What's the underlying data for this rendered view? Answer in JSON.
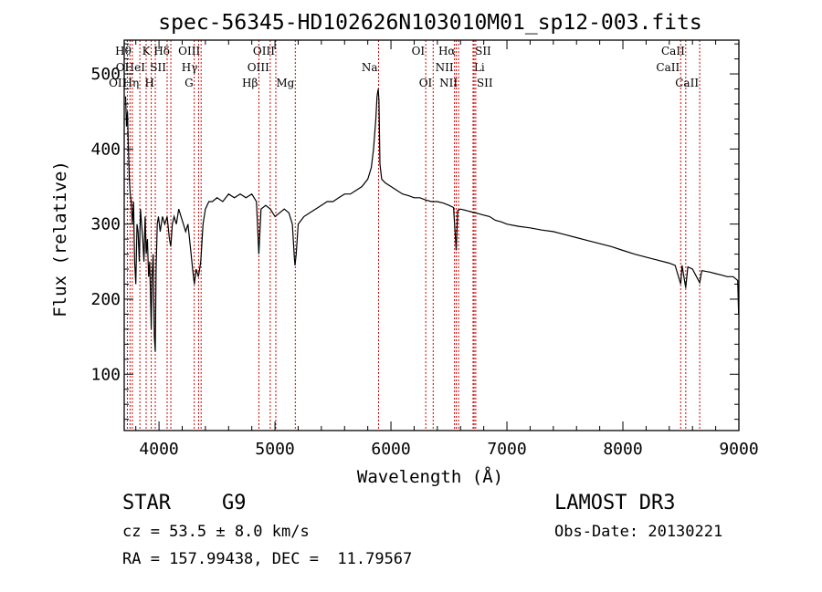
{
  "chart_data": {
    "type": "line",
    "title": "spec-56345-HD102626N103010M01_sp12-003.fits",
    "xlabel": "Wavelength (Å)",
    "ylabel": "Flux (relative)",
    "xlim": [
      3700,
      9000
    ],
    "ylim": [
      25,
      545
    ],
    "xticks": [
      4000,
      5000,
      6000,
      7000,
      8000,
      9000
    ],
    "yticks": [
      100,
      200,
      300,
      400,
      500
    ],
    "grid": false,
    "line_color": "#000000",
    "marker_color": "#cc0000",
    "spectrum": [
      [
        3712,
        470
      ],
      [
        3720,
        430
      ],
      [
        3728,
        450
      ],
      [
        3736,
        400
      ],
      [
        3744,
        360
      ],
      [
        3752,
        340
      ],
      [
        3760,
        330
      ],
      [
        3770,
        300
      ],
      [
        3780,
        330
      ],
      [
        3790,
        250
      ],
      [
        3800,
        220
      ],
      [
        3810,
        300
      ],
      [
        3820,
        290
      ],
      [
        3830,
        250
      ],
      [
        3840,
        320
      ],
      [
        3850,
        300
      ],
      [
        3860,
        280
      ],
      [
        3870,
        250
      ],
      [
        3880,
        310
      ],
      [
        3890,
        260
      ],
      [
        3900,
        280
      ],
      [
        3910,
        230
      ],
      [
        3920,
        250
      ],
      [
        3933,
        160
      ],
      [
        3940,
        230
      ],
      [
        3950,
        260
      ],
      [
        3960,
        150
      ],
      [
        3968,
        130
      ],
      [
        3975,
        240
      ],
      [
        3985,
        300
      ],
      [
        3995,
        310
      ],
      [
        4010,
        290
      ],
      [
        4030,
        310
      ],
      [
        4050,
        300
      ],
      [
        4070,
        310
      ],
      [
        4090,
        280
      ],
      [
        4102,
        270
      ],
      [
        4115,
        300
      ],
      [
        4130,
        310
      ],
      [
        4150,
        300
      ],
      [
        4170,
        320
      ],
      [
        4190,
        310
      ],
      [
        4210,
        300
      ],
      [
        4230,
        290
      ],
      [
        4250,
        300
      ],
      [
        4270,
        270
      ],
      [
        4290,
        240
      ],
      [
        4305,
        220
      ],
      [
        4320,
        240
      ],
      [
        4340,
        230
      ],
      [
        4360,
        250
      ],
      [
        4380,
        300
      ],
      [
        4400,
        320
      ],
      [
        4430,
        330
      ],
      [
        4460,
        330
      ],
      [
        4500,
        335
      ],
      [
        4550,
        330
      ],
      [
        4600,
        340
      ],
      [
        4650,
        335
      ],
      [
        4700,
        340
      ],
      [
        4750,
        335
      ],
      [
        4800,
        340
      ],
      [
        4840,
        330
      ],
      [
        4861,
        260
      ],
      [
        4880,
        320
      ],
      [
        4920,
        325
      ],
      [
        4960,
        320
      ],
      [
        5000,
        310
      ],
      [
        5040,
        315
      ],
      [
        5080,
        320
      ],
      [
        5120,
        315
      ],
      [
        5150,
        300
      ],
      [
        5167,
        255
      ],
      [
        5173,
        245
      ],
      [
        5183,
        260
      ],
      [
        5200,
        300
      ],
      [
        5250,
        310
      ],
      [
        5300,
        315
      ],
      [
        5350,
        320
      ],
      [
        5400,
        325
      ],
      [
        5450,
        330
      ],
      [
        5500,
        330
      ],
      [
        5550,
        335
      ],
      [
        5600,
        340
      ],
      [
        5650,
        340
      ],
      [
        5700,
        345
      ],
      [
        5750,
        350
      ],
      [
        5800,
        360
      ],
      [
        5830,
        375
      ],
      [
        5850,
        400
      ],
      [
        5870,
        440
      ],
      [
        5880,
        470
      ],
      [
        5890,
        480
      ],
      [
        5896,
        465
      ],
      [
        5905,
        380
      ],
      [
        5920,
        360
      ],
      [
        5950,
        355
      ],
      [
        6000,
        350
      ],
      [
        6050,
        345
      ],
      [
        6100,
        340
      ],
      [
        6150,
        338
      ],
      [
        6200,
        335
      ],
      [
        6250,
        335
      ],
      [
        6300,
        332
      ],
      [
        6350,
        330
      ],
      [
        6400,
        330
      ],
      [
        6450,
        328
      ],
      [
        6500,
        325
      ],
      [
        6540,
        322
      ],
      [
        6563,
        265
      ],
      [
        6575,
        318
      ],
      [
        6600,
        320
      ],
      [
        6650,
        318
      ],
      [
        6700,
        316
      ],
      [
        6750,
        314
      ],
      [
        6800,
        312
      ],
      [
        6850,
        310
      ],
      [
        6900,
        305
      ],
      [
        6950,
        303
      ],
      [
        7000,
        300
      ],
      [
        7100,
        297
      ],
      [
        7200,
        295
      ],
      [
        7300,
        292
      ],
      [
        7400,
        290
      ],
      [
        7500,
        286
      ],
      [
        7600,
        282
      ],
      [
        7700,
        278
      ],
      [
        7800,
        274
      ],
      [
        7900,
        270
      ],
      [
        8000,
        265
      ],
      [
        8100,
        260
      ],
      [
        8200,
        256
      ],
      [
        8300,
        252
      ],
      [
        8400,
        248
      ],
      [
        8450,
        245
      ],
      [
        8498,
        220
      ],
      [
        8510,
        245
      ],
      [
        8542,
        215
      ],
      [
        8560,
        243
      ],
      [
        8600,
        240
      ],
      [
        8662,
        222
      ],
      [
        8680,
        238
      ],
      [
        8750,
        236
      ],
      [
        8800,
        234
      ],
      [
        8850,
        232
      ],
      [
        8900,
        230
      ],
      [
        8950,
        230
      ],
      [
        8990,
        225
      ],
      [
        8998,
        180
      ]
    ],
    "line_markers": [
      {
        "wl": 3727,
        "label": "OII",
        "row": 2,
        "side": "left"
      },
      {
        "wl": 3750,
        "label": "OI",
        "row": 1,
        "side": "left"
      },
      {
        "wl": 3770,
        "label": "Hθ",
        "row": 0,
        "side": "left"
      },
      {
        "wl": 3835,
        "label": "Hη",
        "row": 2,
        "side": "left"
      },
      {
        "wl": 3889,
        "label": "HeI",
        "row": 1,
        "side": "left"
      },
      {
        "wl": 3933,
        "label": "K",
        "row": 0,
        "side": "left"
      },
      {
        "wl": 3968,
        "label": "H",
        "row": 2,
        "side": "left"
      },
      {
        "wl": 4070,
        "label": "SII",
        "row": 1,
        "side": "left"
      },
      {
        "wl": 4102,
        "label": "Hδ",
        "row": 0,
        "side": "left"
      },
      {
        "wl": 4304,
        "label": "G",
        "row": 2,
        "side": "left"
      },
      {
        "wl": 4341,
        "label": "Hγ",
        "row": 1,
        "side": "left"
      },
      {
        "wl": 4363,
        "label": "OIII",
        "row": 0,
        "side": "left"
      },
      {
        "wl": 4861,
        "label": "Hβ",
        "row": 2,
        "side": "left"
      },
      {
        "wl": 4959,
        "label": "OIII",
        "row": 1,
        "side": "left"
      },
      {
        "wl": 5007,
        "label": "OIII",
        "row": 0,
        "side": "left"
      },
      {
        "wl": 5175,
        "label": "Mg",
        "row": 2,
        "side": "left"
      },
      {
        "wl": 5893,
        "label": "Na",
        "row": 1,
        "side": "left"
      },
      {
        "wl": 6300,
        "label": "OI",
        "row": 0,
        "side": "left"
      },
      {
        "wl": 6364,
        "label": "OI",
        "row": 2,
        "side": "left"
      },
      {
        "wl": 6548,
        "label": "NII",
        "row": 1,
        "side": "left"
      },
      {
        "wl": 6563,
        "label": "Hα",
        "row": 0,
        "side": "left"
      },
      {
        "wl": 6583,
        "label": "NII",
        "row": 2,
        "side": "left"
      },
      {
        "wl": 6708,
        "label": "Li",
        "row": 1,
        "side": "right"
      },
      {
        "wl": 6717,
        "label": "SII",
        "row": 0,
        "side": "right"
      },
      {
        "wl": 6731,
        "label": "SII",
        "row": 2,
        "side": "right"
      },
      {
        "wl": 8498,
        "label": "CaII",
        "row": 1,
        "side": "left"
      },
      {
        "wl": 8542,
        "label": "CaII",
        "row": 0,
        "side": "left"
      },
      {
        "wl": 8662,
        "label": "CaII",
        "row": 2,
        "side": "left"
      }
    ]
  },
  "info": {
    "class": "STAR",
    "subclass": "G9",
    "survey": "LAMOST DR3",
    "redshift": "cz = 53.5 ± 8.0 km/s",
    "obs_date": "Obs-Date: 20130221",
    "coords": "RA = 157.99438, DEC =  11.79567"
  }
}
